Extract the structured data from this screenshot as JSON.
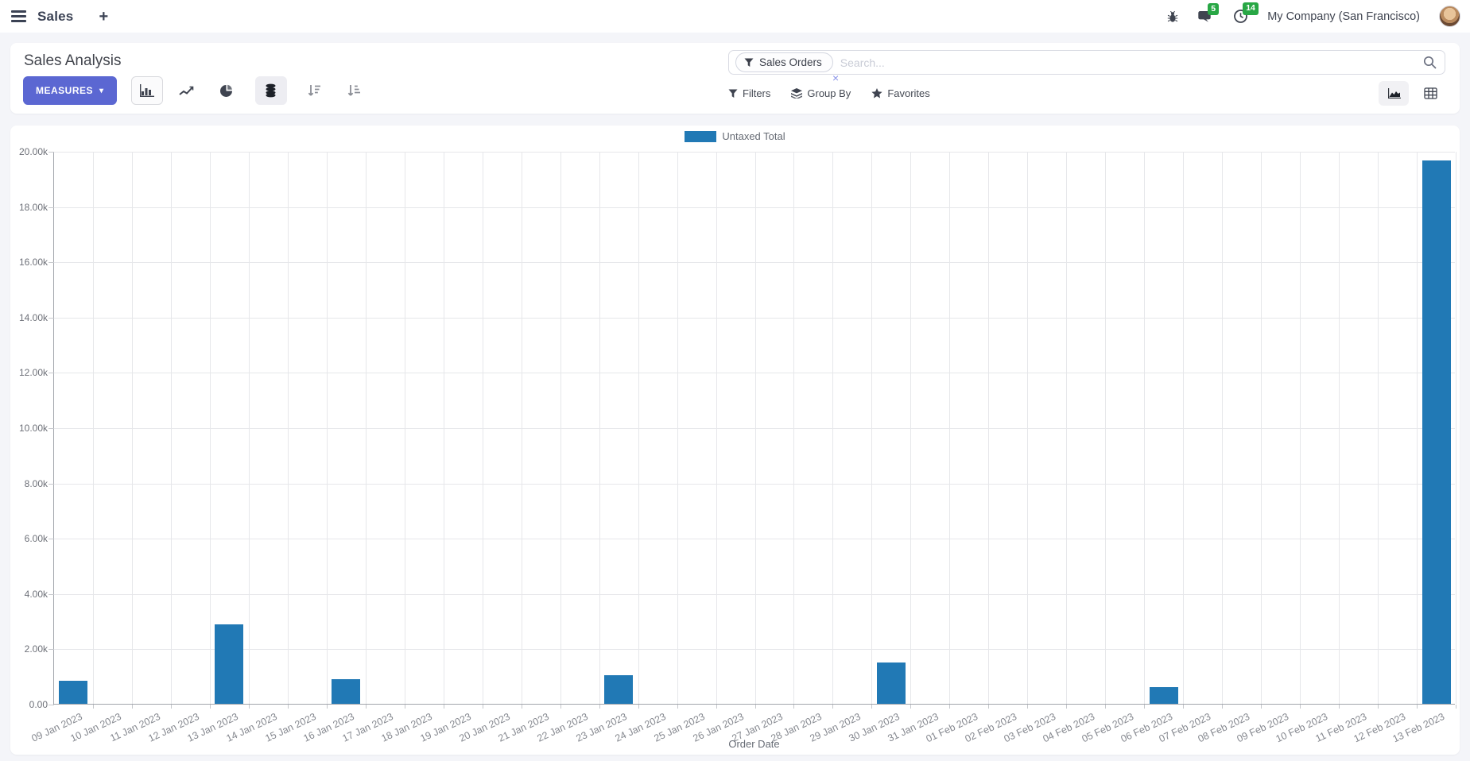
{
  "navbar": {
    "app_name": "Sales",
    "plus_label": "+",
    "message_badge": "5",
    "activity_badge": "14",
    "company": "My Company (San Francisco)"
  },
  "control_panel": {
    "title": "Sales Analysis",
    "measures_label": "MEASURES",
    "measures_caret": "▾",
    "filters_label": "Filters",
    "group_by_label": "Group By",
    "favorites_label": "Favorites"
  },
  "search": {
    "facet_label": "Sales Orders",
    "facet_remove_glyph": "×",
    "placeholder": "Search..."
  },
  "icons": {
    "toolbar": [
      "bar-chart-icon",
      "line-chart-icon",
      "pie-chart-icon",
      "stacked-icon",
      "sort-desc-icon",
      "sort-asc-icon"
    ],
    "view_switcher": [
      "graph-view-icon",
      "pivot-view-icon"
    ]
  },
  "colors": {
    "accent": "#5b67d2",
    "badge_green": "#28a745",
    "bar_blue": "#2179b5"
  },
  "chart_data": {
    "type": "bar",
    "title": "",
    "categories": [
      "09 Jan 2023",
      "10 Jan 2023",
      "11 Jan 2023",
      "12 Jan 2023",
      "13 Jan 2023",
      "14 Jan 2023",
      "15 Jan 2023",
      "16 Jan 2023",
      "17 Jan 2023",
      "18 Jan 2023",
      "19 Jan 2023",
      "20 Jan 2023",
      "21 Jan 2023",
      "22 Jan 2023",
      "23 Jan 2023",
      "24 Jan 2023",
      "25 Jan 2023",
      "26 Jan 2023",
      "27 Jan 2023",
      "28 Jan 2023",
      "29 Jan 2023",
      "30 Jan 2023",
      "31 Jan 2023",
      "01 Feb 2023",
      "02 Feb 2023",
      "03 Feb 2023",
      "04 Feb 2023",
      "05 Feb 2023",
      "06 Feb 2023",
      "07 Feb 2023",
      "08 Feb 2023",
      "09 Feb 2023",
      "10 Feb 2023",
      "11 Feb 2023",
      "12 Feb 2023",
      "13 Feb 2023"
    ],
    "series": [
      {
        "name": "Untaxed Total",
        "color": "#2179b5",
        "values": [
          820,
          0,
          0,
          0,
          2860,
          0,
          0,
          900,
          0,
          0,
          0,
          0,
          0,
          0,
          1040,
          0,
          0,
          0,
          0,
          0,
          0,
          1490,
          0,
          0,
          0,
          0,
          0,
          0,
          590,
          0,
          0,
          0,
          0,
          0,
          0,
          19650
        ]
      }
    ],
    "xlabel": "Order Date",
    "ylabel": "",
    "ylim": [
      0,
      20000
    ],
    "ytick_step": 2000,
    "legend_position": "top",
    "grid": true
  }
}
